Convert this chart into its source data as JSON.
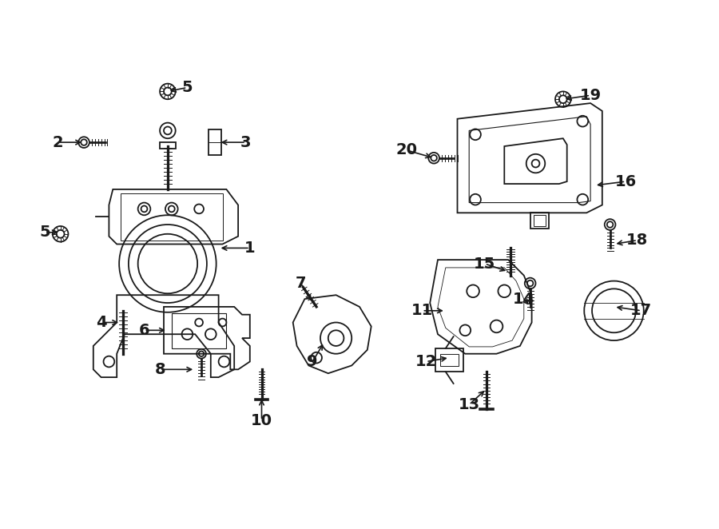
{
  "bg_color": "#ffffff",
  "line_color": "#1a1a1a",
  "figsize": [
    9.0,
    6.62
  ],
  "dpi": 100,
  "labels": [
    [
      1,
      310,
      310,
      270,
      310
    ],
    [
      2,
      65,
      175,
      98,
      175
    ],
    [
      3,
      305,
      175,
      270,
      175
    ],
    [
      4,
      120,
      405,
      145,
      405
    ],
    [
      5,
      230,
      105,
      205,
      110
    ],
    [
      5,
      48,
      290,
      68,
      290
    ],
    [
      6,
      175,
      415,
      205,
      415
    ],
    [
      7,
      375,
      355,
      390,
      380
    ],
    [
      8,
      195,
      465,
      240,
      465
    ],
    [
      9,
      390,
      455,
      405,
      430
    ],
    [
      10,
      325,
      530,
      325,
      500
    ],
    [
      11,
      530,
      390,
      560,
      390
    ],
    [
      12,
      535,
      455,
      565,
      450
    ],
    [
      13,
      590,
      510,
      612,
      490
    ],
    [
      14,
      660,
      375,
      668,
      385
    ],
    [
      15,
      610,
      330,
      640,
      340
    ],
    [
      16,
      790,
      225,
      750,
      230
    ],
    [
      17,
      810,
      390,
      775,
      385
    ],
    [
      18,
      805,
      300,
      775,
      305
    ],
    [
      19,
      745,
      115,
      710,
      120
    ],
    [
      20,
      510,
      185,
      545,
      195
    ]
  ]
}
